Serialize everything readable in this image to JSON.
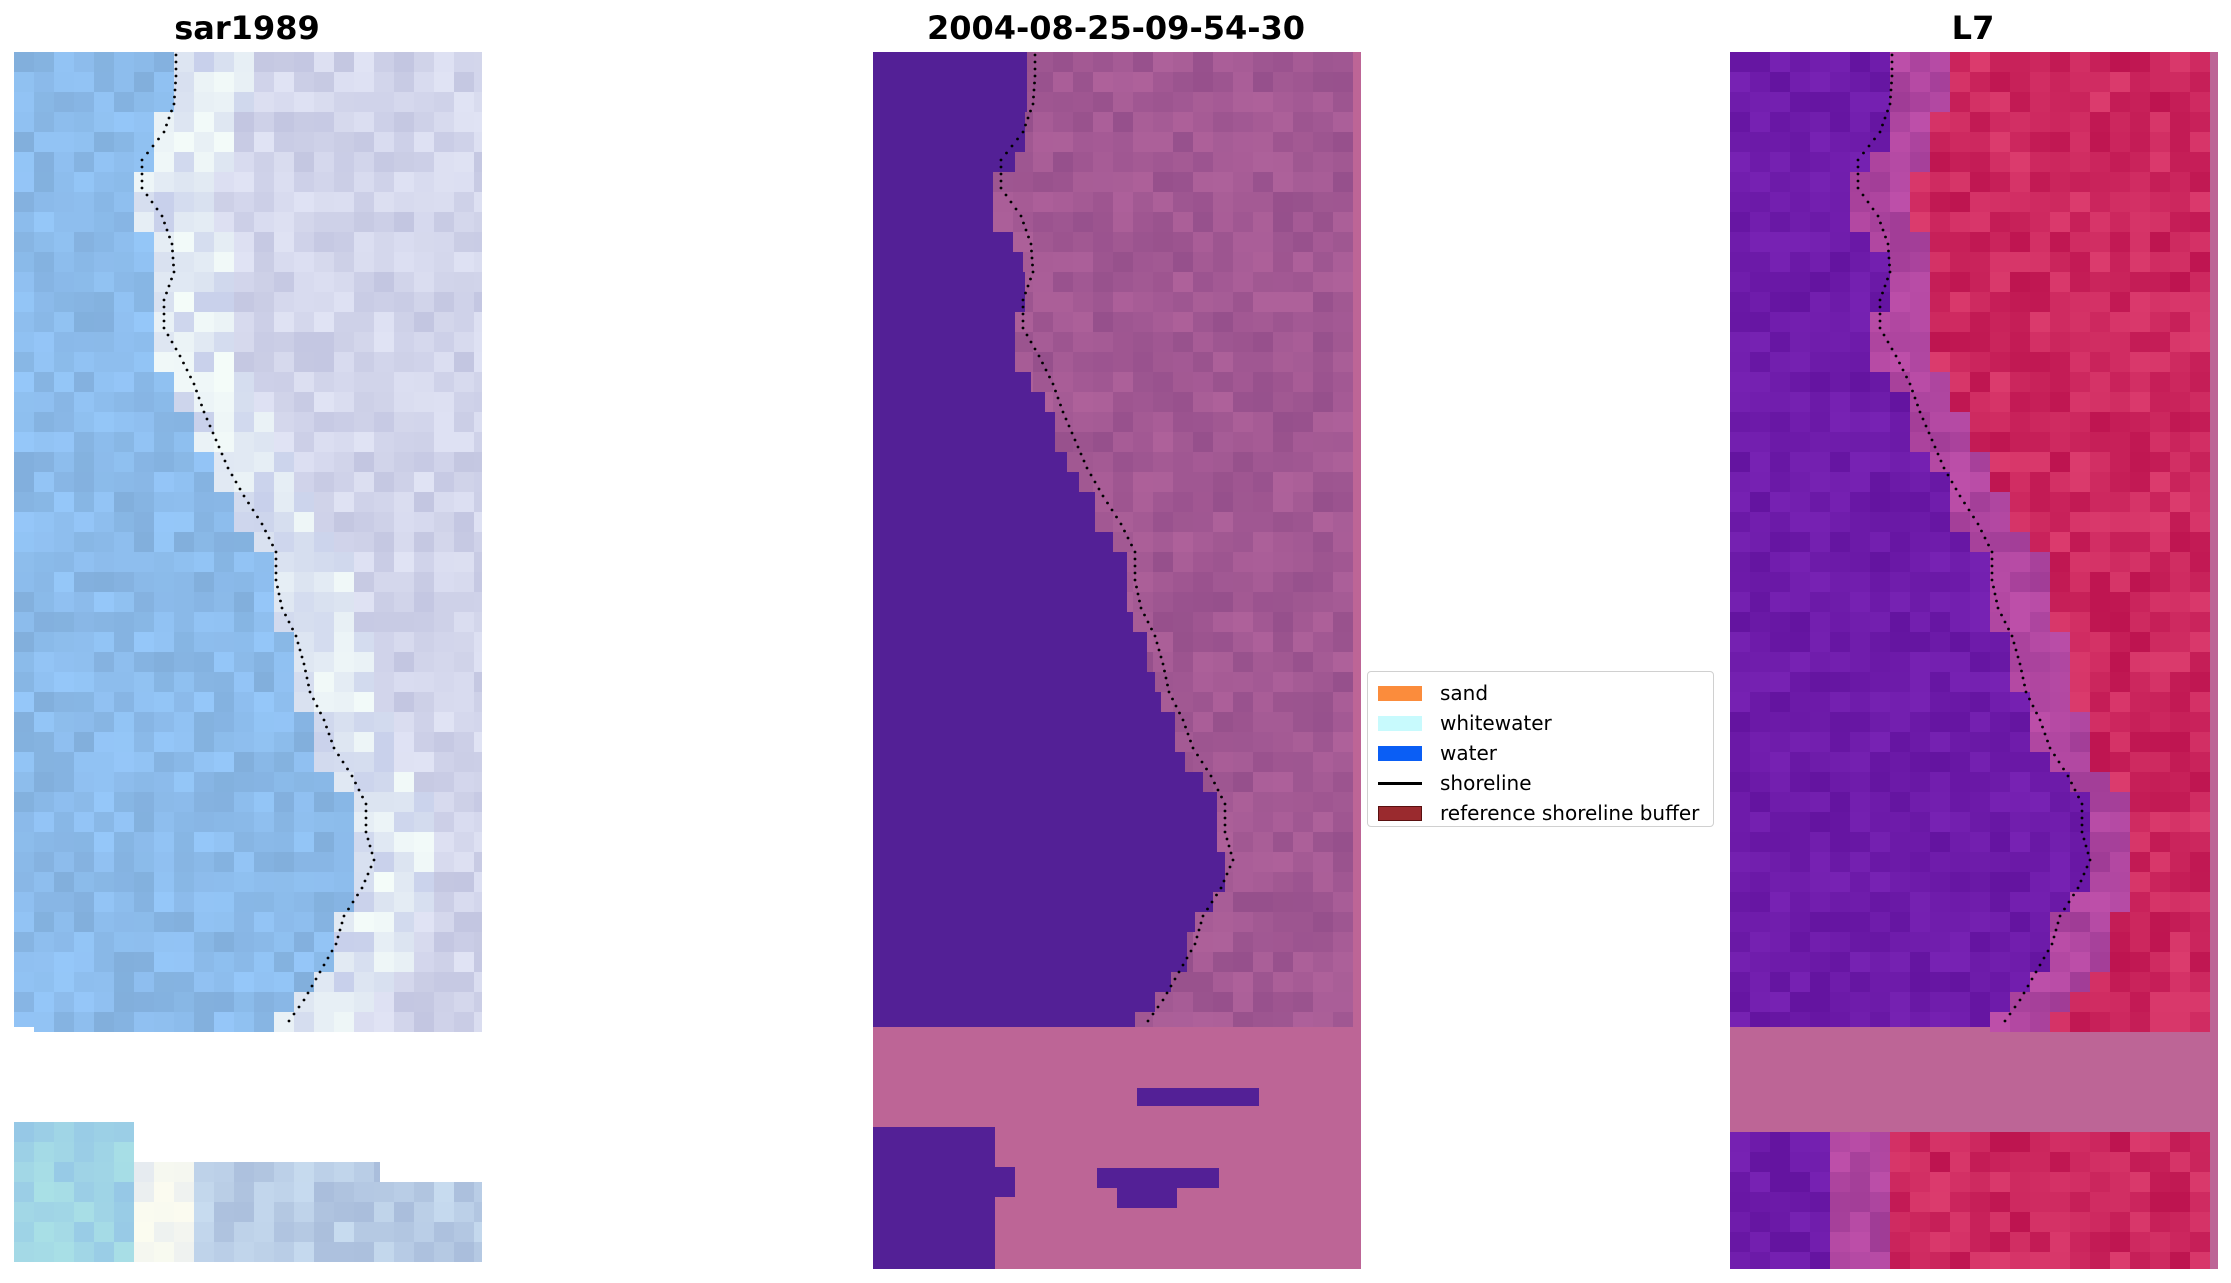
{
  "panels": [
    {
      "title": "sar1989"
    },
    {
      "title": "2004-08-25-09-54-30"
    },
    {
      "title": "L7"
    }
  ],
  "legend": [
    {
      "label": "sand",
      "color": "#fb8c3c",
      "kind": "patch"
    },
    {
      "label": "whitewater",
      "color": "#c8fafd",
      "kind": "patch"
    },
    {
      "label": "water",
      "color": "#0a5ef5",
      "kind": "patch"
    },
    {
      "label": "shoreline",
      "color": "#000000",
      "kind": "line"
    },
    {
      "label": "reference shoreline buffer",
      "color": "#9a2a2e",
      "kind": "patch"
    }
  ],
  "colors": {
    "water_class": "#532096",
    "land_class": "#a0558f",
    "nodata_mask": "#bd6596"
  }
}
